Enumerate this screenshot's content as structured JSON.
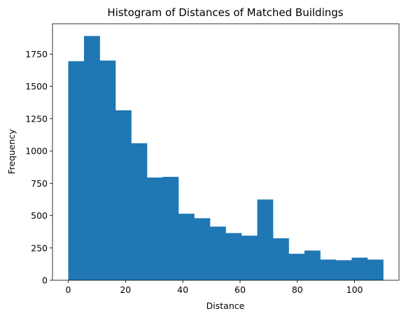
{
  "chart_data": {
    "type": "bar",
    "title": "Histogram of Distances of Matched Buildings",
    "xlabel": "Distance",
    "ylabel": "Frequency",
    "bin_edges": [
      0,
      5.5,
      11,
      16.5,
      22,
      27.5,
      33,
      38.5,
      44,
      49.5,
      55,
      60.5,
      66,
      71.5,
      77,
      82.5,
      88,
      93.5,
      99,
      104.5,
      110
    ],
    "values": [
      1695,
      1890,
      1700,
      1315,
      1060,
      795,
      800,
      515,
      480,
      415,
      365,
      345,
      625,
      325,
      205,
      230,
      160,
      155,
      175,
      160
    ],
    "xlim": [
      -5.5,
      115.5
    ],
    "ylim": [
      0,
      1984.5
    ],
    "xticks": [
      0,
      20,
      40,
      60,
      80,
      100
    ],
    "yticks": [
      0,
      250,
      500,
      750,
      1000,
      1250,
      1500,
      1750
    ],
    "bar_color": "#1f77b4",
    "grid": false,
    "legend": "none"
  }
}
